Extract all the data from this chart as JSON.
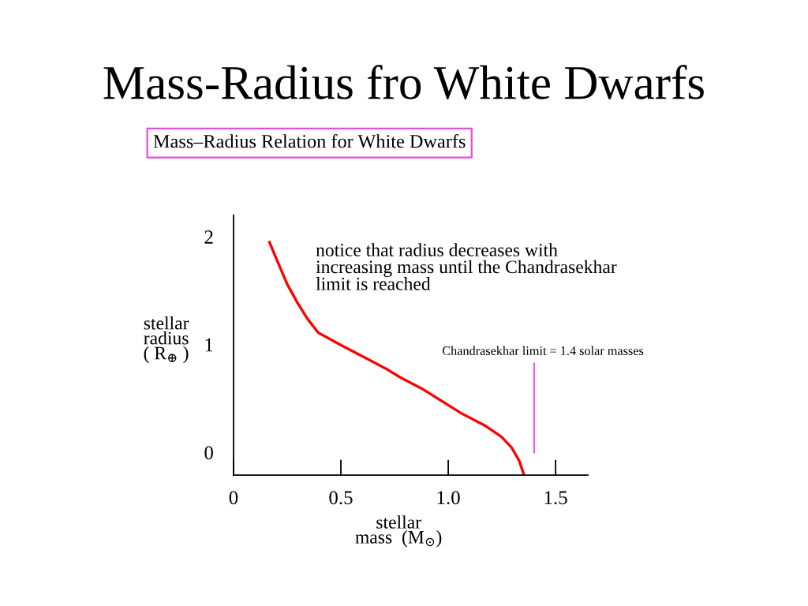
{
  "chart_data": {
    "type": "line",
    "title": "Mass-Radius fro White Dwarfs",
    "subtitle": "Mass–Radius Relation for White Dwarfs",
    "xlabel": "stellar\nmass  (M$_{⊙}$)",
    "ylabel": "stellar\nradius\n( R$_{⊕}$ )",
    "annotations": [
      "notice that radius decreases with\nincreasing mass until the Chandrasekhar\nlimit is reached"
    ],
    "series": [
      {
        "color": "#ff0000",
        "x": [
          0.165,
          0.203,
          0.25,
          0.297,
          0.344,
          0.395,
          0.496,
          0.614,
          0.708,
          0.778,
          0.884,
          1.06,
          1.177,
          1.248,
          1.295,
          1.33,
          1.353
        ],
        "values": [
          1.96,
          1.78,
          1.56,
          1.39,
          1.24,
          1.11,
          1.0,
          0.877,
          0.779,
          0.694,
          0.584,
          0.364,
          0.242,
          0.144,
          0.046,
          -0.075,
          -0.21
        ]
      }
    ],
    "xlim": [
      0,
      1.65
    ],
    "ylim": [
      -0.21,
      2.2
    ],
    "xticks": [
      0,
      0.5,
      {
        "value": 1,
        "label": "1.0"
      },
      1.5
    ],
    "yticks": [
      0,
      1,
      2
    ],
    "ref_lines": [
      {
        "axis": "x",
        "value": 1.4,
        "label": "Chandrasekhar limit = 1.4 solar masses",
        "color": "#ee55ee"
      }
    ]
  }
}
